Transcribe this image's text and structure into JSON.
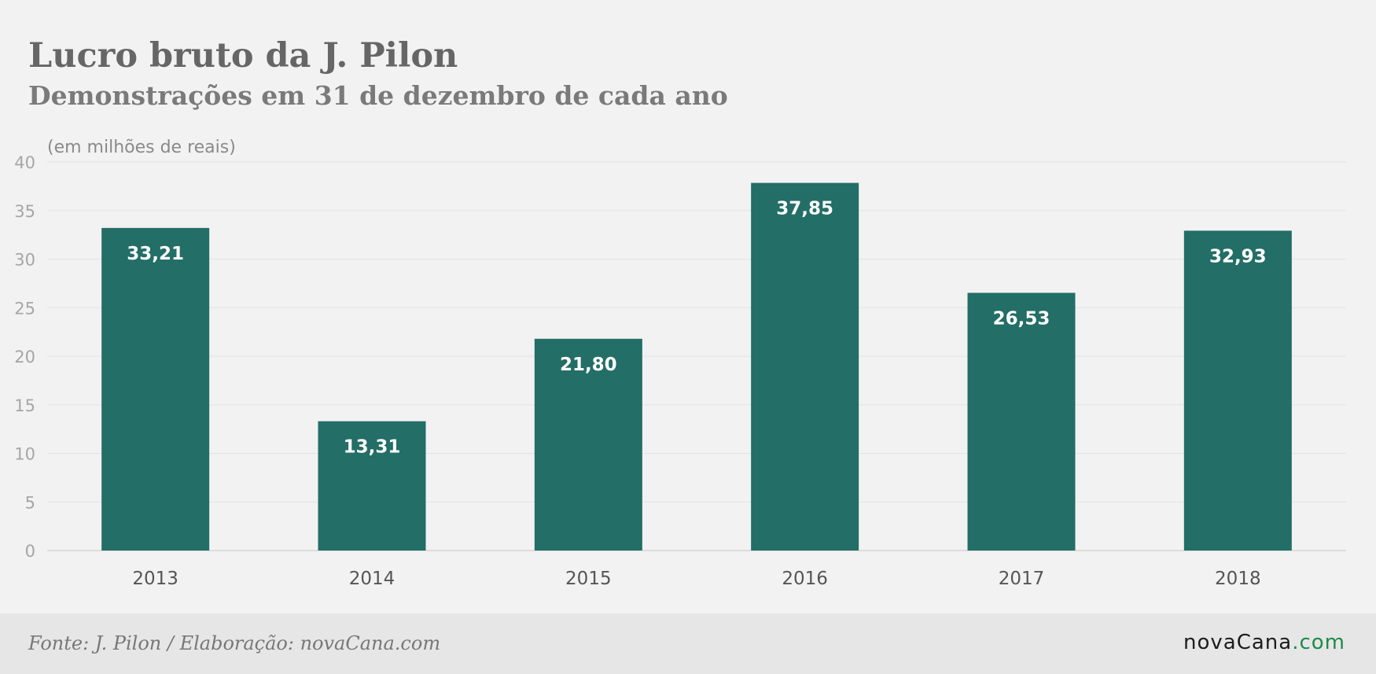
{
  "title": "Lucro bruto da J. Pilon",
  "subtitle": "Demonstrações em 31 de dezembro de cada ano",
  "footer": {
    "source": "Fonte: J. Pilon / Elaboração: novaCana.com",
    "logo_main": "novaCana",
    "logo_suffix": ".com"
  },
  "colors": {
    "bar": "#236e66",
    "bar_label": "#ffffff",
    "gridline": "#e3e3e3",
    "tick_label": "#a6a6a6",
    "category_label": "#555555",
    "logo_suffix": "#1f8a4c"
  },
  "chart_data": {
    "type": "bar",
    "categories": [
      "2013",
      "2014",
      "2015",
      "2016",
      "2017",
      "2018"
    ],
    "values": [
      33.21,
      13.31,
      21.8,
      37.85,
      26.53,
      32.93
    ],
    "value_labels": [
      "33,21",
      "13,31",
      "21,80",
      "37,85",
      "26,53",
      "32,93"
    ],
    "unit_label": "(em milhões de reais)",
    "ylim": [
      0,
      40
    ],
    "yticks": [
      0,
      5,
      10,
      15,
      20,
      25,
      30,
      35,
      40
    ],
    "grid": true,
    "legend": "none"
  }
}
